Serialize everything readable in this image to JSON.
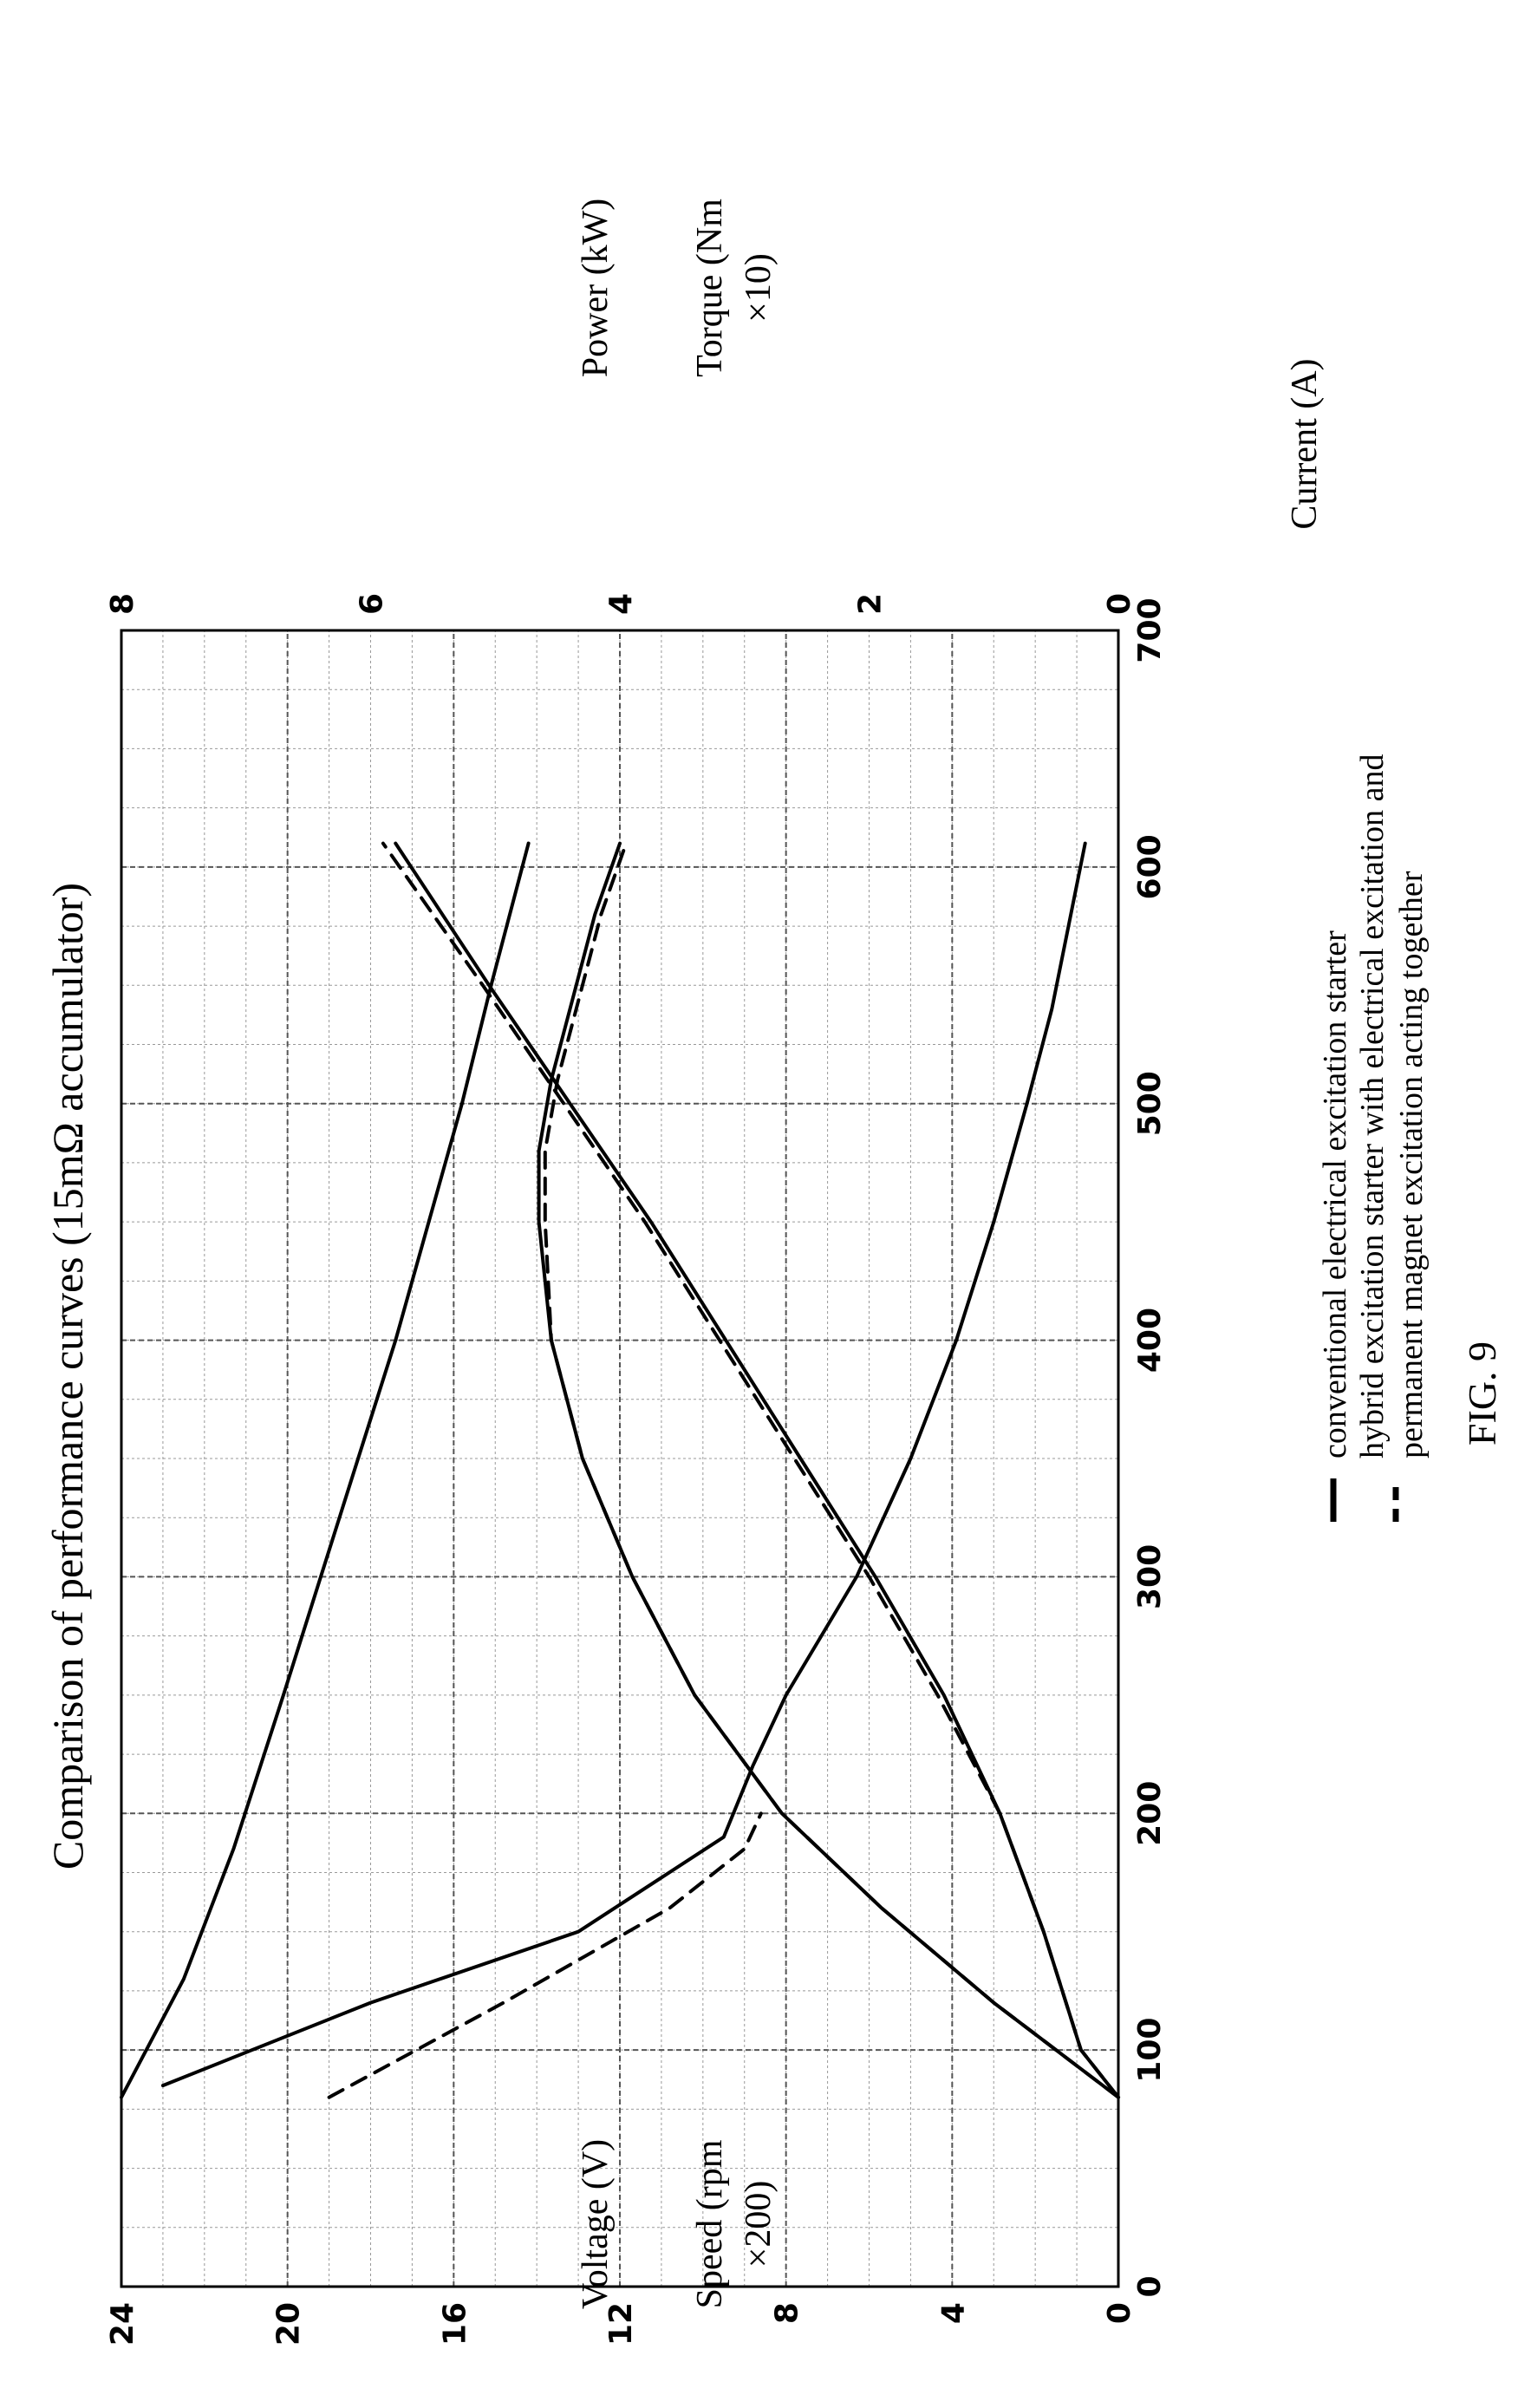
{
  "chart_data": {
    "type": "line",
    "title": "Comparison of performance curves (15mΩ accumulator)",
    "xlabel": "Current (A)",
    "xlim": [
      0,
      700
    ],
    "x_ticks": [
      "0",
      "100",
      "200",
      "300",
      "400",
      "500",
      "600",
      "700"
    ],
    "left_axis": {
      "labels": [
        "Voltage (V)",
        "Speed (rpm",
        "×200)"
      ],
      "ylim": [
        0,
        24
      ],
      "ticks": [
        "0",
        "4",
        "8",
        "12",
        "16",
        "20",
        "24"
      ]
    },
    "right_axis": {
      "labels": [
        "Power (kW)",
        "Torque (Nm",
        "×10)"
      ],
      "ylim": [
        0,
        8
      ],
      "ticks": [
        "0",
        "2",
        "4",
        "6",
        "8"
      ]
    },
    "grid": true,
    "legend_position": "bottom",
    "legend": [
      {
        "label": "conventional electrical excitation starter",
        "style": "solid"
      },
      {
        "label": "hybrid excitation starter with electrical excitation and",
        "style": "dashed"
      },
      {
        "label": "permanent magnet excitation acting together",
        "style": "none"
      }
    ],
    "figure_label": "FIG. 9",
    "series": [
      {
        "style": "solid",
        "axis": "left",
        "x": [
          80,
          130,
          185,
          250,
          300,
          350,
          400,
          450,
          500,
          550,
          610
        ],
        "y": [
          24,
          22.5,
          21.3,
          20.1,
          19.2,
          18.3,
          17.4,
          16.6,
          15.8,
          15.1,
          14.2
        ]
      },
      {
        "style": "solid",
        "axis": "left",
        "x": [
          85,
          120,
          150,
          190,
          220,
          250,
          300,
          350,
          400,
          450,
          500,
          540,
          610
        ],
        "y": [
          23,
          18,
          13,
          9.5,
          8.8,
          8.0,
          6.3,
          5.0,
          3.9,
          3.0,
          2.2,
          1.6,
          0.8
        ]
      },
      {
        "style": "dashed",
        "axis": "left",
        "x": [
          80,
          120,
          160,
          185,
          200
        ],
        "y": [
          19,
          14.8,
          10.8,
          9.0,
          8.6
        ]
      },
      {
        "style": "solid",
        "axis": "right",
        "x": [
          80,
          120,
          160,
          200,
          250,
          300,
          350,
          400,
          450,
          480,
          510,
          550,
          580,
          610
        ],
        "y": [
          0,
          1.0,
          1.9,
          2.7,
          3.4,
          3.9,
          4.3,
          4.55,
          4.65,
          4.65,
          4.55,
          4.35,
          4.2,
          4.0
        ]
      },
      {
        "style": "dashed",
        "axis": "right",
        "x": [
          80,
          120,
          160,
          200,
          250,
          300,
          350,
          400,
          450,
          480,
          510,
          550,
          580,
          610
        ],
        "y": [
          0,
          1.0,
          1.9,
          2.7,
          3.4,
          3.9,
          4.3,
          4.55,
          4.6,
          4.6,
          4.5,
          4.3,
          4.15,
          3.95
        ]
      },
      {
        "style": "solid",
        "axis": "right",
        "x": [
          80,
          100,
          150,
          200,
          250,
          300,
          350,
          400,
          450,
          500,
          550,
          610
        ],
        "y": [
          0,
          0.3,
          0.6,
          0.95,
          1.4,
          1.95,
          2.55,
          3.15,
          3.75,
          4.4,
          5.05,
          5.8
        ]
      },
      {
        "style": "dashed",
        "axis": "right",
        "x": [
          80,
          100,
          150,
          200,
          250,
          300,
          350,
          400,
          450,
          500,
          550,
          610
        ],
        "y": [
          0,
          0.3,
          0.6,
          0.95,
          1.45,
          2.0,
          2.6,
          3.2,
          3.8,
          4.45,
          5.1,
          5.9
        ]
      }
    ]
  }
}
